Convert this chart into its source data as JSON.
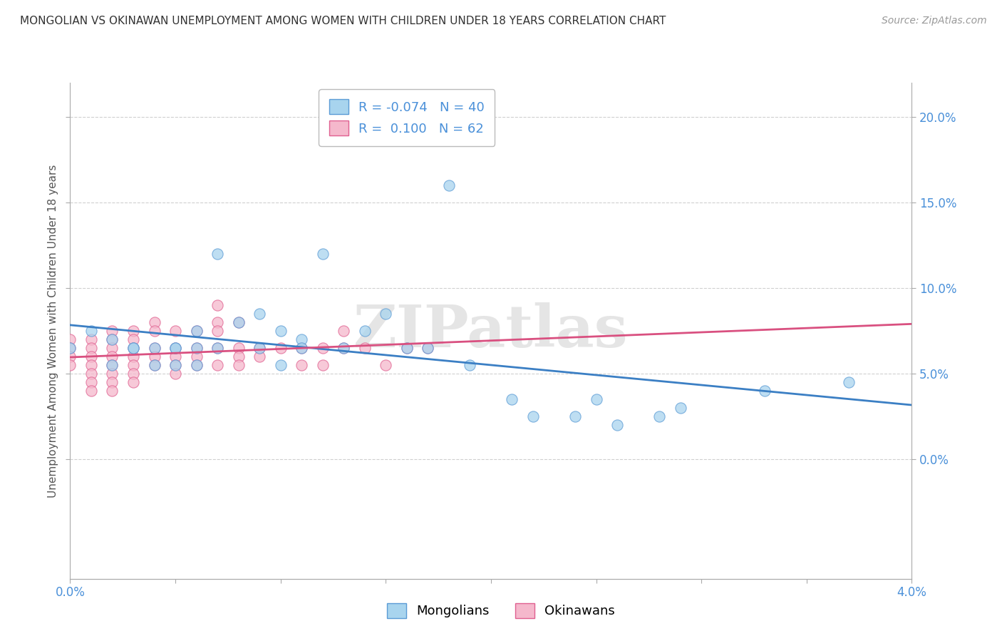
{
  "title": "MONGOLIAN VS OKINAWAN UNEMPLOYMENT AMONG WOMEN WITH CHILDREN UNDER 18 YEARS CORRELATION CHART",
  "source": "Source: ZipAtlas.com",
  "ylabel": "Unemployment Among Women with Children Under 18 years",
  "watermark": "ZIPatlas",
  "xlim": [
    0.0,
    0.04
  ],
  "ylim": [
    -0.07,
    0.22
  ],
  "yticks": [
    0.0,
    0.05,
    0.1,
    0.15,
    0.2
  ],
  "ytick_labels": [
    "0.0%",
    "5.0%",
    "10.0%",
    "15.0%",
    "20.0%"
  ],
  "xticks": [
    0.0,
    0.005,
    0.01,
    0.015,
    0.02,
    0.025,
    0.03,
    0.035,
    0.04
  ],
  "xtick_labels": [
    "0.0%",
    "",
    "",
    "",
    "",
    "",
    "",
    "",
    "4.0%"
  ],
  "mongolian_color": "#A8D4EE",
  "okinawan_color": "#F5B8CC",
  "mongolian_edge_color": "#5B9BD5",
  "okinawan_edge_color": "#E06090",
  "mongolian_trendline_color": "#3B7FC4",
  "okinawan_trendline_color": "#D95080",
  "legend_mongolian_label": "R = -0.074   N = 40",
  "legend_okinawan_label": "R =  0.100   N = 62",
  "bottom_legend_mongolians": "Mongolians",
  "bottom_legend_okinawans": "Okinawans",
  "mongolian_x": [
    0.0,
    0.001,
    0.002,
    0.002,
    0.003,
    0.003,
    0.004,
    0.004,
    0.005,
    0.005,
    0.005,
    0.006,
    0.006,
    0.006,
    0.007,
    0.007,
    0.008,
    0.009,
    0.009,
    0.01,
    0.01,
    0.011,
    0.011,
    0.012,
    0.013,
    0.014,
    0.015,
    0.016,
    0.017,
    0.018,
    0.019,
    0.021,
    0.022,
    0.024,
    0.025,
    0.026,
    0.028,
    0.029,
    0.033,
    0.037
  ],
  "mongolian_y": [
    0.065,
    0.075,
    0.055,
    0.07,
    0.065,
    0.065,
    0.065,
    0.055,
    0.065,
    0.065,
    0.055,
    0.075,
    0.065,
    0.055,
    0.12,
    0.065,
    0.08,
    0.085,
    0.065,
    0.075,
    0.055,
    0.07,
    0.065,
    0.12,
    0.065,
    0.075,
    0.085,
    0.065,
    0.065,
    0.16,
    0.055,
    0.035,
    0.025,
    0.025,
    0.035,
    0.02,
    0.025,
    0.03,
    0.04,
    0.045
  ],
  "okinawan_x": [
    0.0,
    0.0,
    0.0,
    0.0,
    0.001,
    0.001,
    0.001,
    0.001,
    0.001,
    0.001,
    0.001,
    0.002,
    0.002,
    0.002,
    0.002,
    0.002,
    0.002,
    0.002,
    0.002,
    0.003,
    0.003,
    0.003,
    0.003,
    0.003,
    0.003,
    0.003,
    0.004,
    0.004,
    0.004,
    0.004,
    0.004,
    0.005,
    0.005,
    0.005,
    0.005,
    0.005,
    0.006,
    0.006,
    0.006,
    0.006,
    0.007,
    0.007,
    0.007,
    0.007,
    0.007,
    0.008,
    0.008,
    0.008,
    0.008,
    0.009,
    0.009,
    0.01,
    0.011,
    0.011,
    0.012,
    0.012,
    0.013,
    0.013,
    0.014,
    0.015,
    0.016,
    0.017
  ],
  "okinawan_y": [
    0.07,
    0.065,
    0.06,
    0.055,
    0.07,
    0.065,
    0.06,
    0.055,
    0.05,
    0.045,
    0.04,
    0.075,
    0.07,
    0.065,
    0.06,
    0.055,
    0.05,
    0.045,
    0.04,
    0.075,
    0.07,
    0.065,
    0.06,
    0.055,
    0.05,
    0.045,
    0.08,
    0.075,
    0.065,
    0.06,
    0.055,
    0.075,
    0.065,
    0.06,
    0.055,
    0.05,
    0.075,
    0.065,
    0.06,
    0.055,
    0.09,
    0.08,
    0.075,
    0.065,
    0.055,
    0.08,
    0.065,
    0.06,
    0.055,
    0.065,
    0.06,
    0.065,
    0.065,
    0.055,
    0.065,
    0.055,
    0.075,
    0.065,
    0.065,
    0.055,
    0.065,
    0.065
  ],
  "background_color": "#FFFFFF",
  "grid_color": "#D0D0D0",
  "tick_color": "#4A90D9",
  "spine_color": "#AAAAAA"
}
